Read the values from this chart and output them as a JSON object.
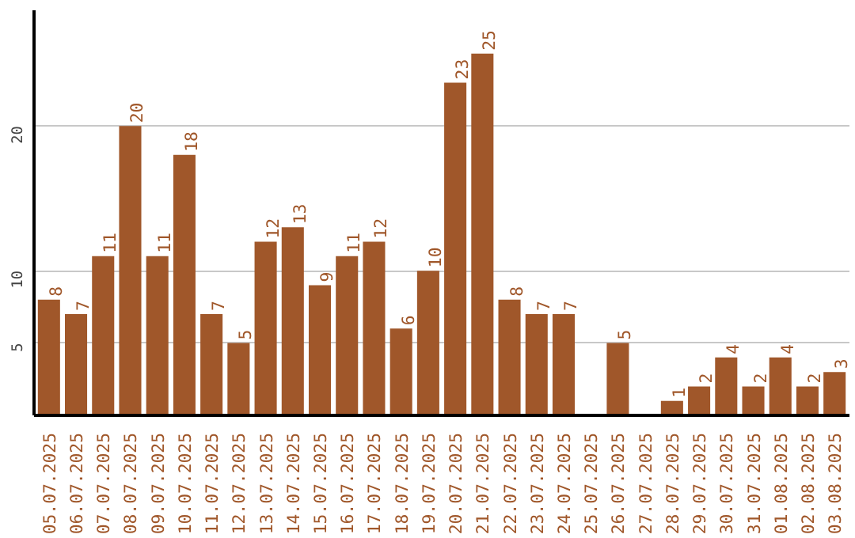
{
  "chart_data": {
    "type": "bar",
    "categories": [
      "05.07.2025",
      "06.07.2025",
      "07.07.2025",
      "08.07.2025",
      "09.07.2025",
      "10.07.2025",
      "11.07.2025",
      "12.07.2025",
      "13.07.2025",
      "14.07.2025",
      "15.07.2025",
      "16.07.2025",
      "17.07.2025",
      "18.07.2025",
      "19.07.2025",
      "20.07.2025",
      "21.07.2025",
      "22.07.2025",
      "23.07.2025",
      "24.07.2025",
      "25.07.2025",
      "26.07.2025",
      "27.07.2025",
      "28.07.2025",
      "29.07.2025",
      "30.07.2025",
      "31.07.2025",
      "01.08.2025",
      "02.08.2025",
      "03.08.2025"
    ],
    "values": [
      8,
      7,
      11,
      20,
      11,
      18,
      7,
      5,
      12,
      13,
      9,
      11,
      12,
      6,
      10,
      23,
      25,
      8,
      7,
      7,
      0,
      5,
      0,
      1,
      2,
      4,
      2,
      4,
      2,
      3
    ],
    "value_labels": [
      "8",
      "7",
      "11",
      "20",
      "11",
      "18",
      "7",
      "5",
      "12",
      "13",
      "9",
      "11",
      "12",
      "6",
      "10",
      "23",
      "25",
      "8",
      "7",
      "7",
      null,
      "5",
      null,
      "1",
      "2",
      "4",
      "2",
      "4",
      "2",
      "3"
    ],
    "color": "#a0572a",
    "ylim": [
      0,
      28
    ],
    "yticks": [
      5,
      10,
      20
    ],
    "grid": "y"
  }
}
